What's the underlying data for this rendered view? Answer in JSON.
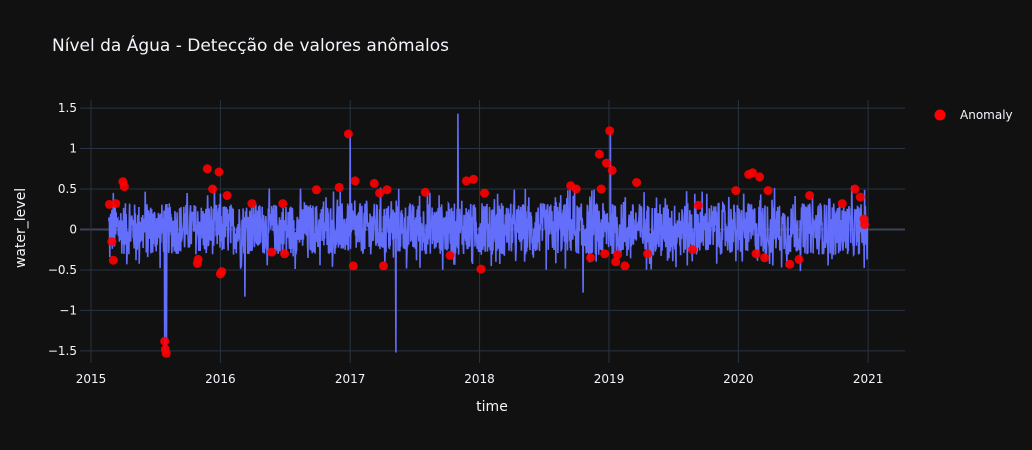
{
  "chart_data": {
    "type": "scatter",
    "title": "Nível da Água -  Detecção de valores anômalos",
    "xlabel": "time",
    "ylabel": "water_level",
    "xlim": [
      "2014-12-01",
      "2021-04-15"
    ],
    "ylim": [
      -1.65,
      1.6
    ],
    "x_ticks": [
      "2015",
      "2016",
      "2017",
      "2018",
      "2019",
      "2020",
      "2021"
    ],
    "y_ticks": [
      {
        "value": 1.5,
        "label": "1.5"
      },
      {
        "value": 1,
        "label": "1"
      },
      {
        "value": 0.5,
        "label": "0.5"
      },
      {
        "value": 0,
        "label": "0"
      },
      {
        "value": -0.5,
        "label": "−0.5"
      },
      {
        "value": -1,
        "label": "−1"
      },
      {
        "value": -1.5,
        "label": "−1.5"
      }
    ],
    "grid": true,
    "legend_position": "top-right",
    "series": [
      {
        "type": "line",
        "color": "#636efa",
        "x_start": "2015-02-20",
        "x_end": "2020-12-31",
        "typical_range": [
          -0.4,
          0.45
        ],
        "spikes": [
          {
            "x": "2015-07-28",
            "y": -1.5
          },
          {
            "x": "2015-08-02",
            "y": -1.45
          },
          {
            "x": "2017-01-01",
            "y": 1.18
          },
          {
            "x": "2017-05-10",
            "y": -1.52
          },
          {
            "x": "2017-11-01",
            "y": 1.43
          },
          {
            "x": "2019-01-05",
            "y": 1.22
          },
          {
            "x": "2016-03-10",
            "y": -0.83
          },
          {
            "x": "2018-10-20",
            "y": -0.78
          }
        ]
      },
      {
        "type": "scatter",
        "name": "Anomaly",
        "color": "#ff0000",
        "points": [
          {
            "x": "2015-02-22",
            "y": 0.31
          },
          {
            "x": "2015-03-01",
            "y": -0.15
          },
          {
            "x": "2015-03-05",
            "y": -0.38
          },
          {
            "x": "2015-03-12",
            "y": 0.32
          },
          {
            "x": "2015-04-01",
            "y": 0.59
          },
          {
            "x": "2015-04-05",
            "y": 0.53
          },
          {
            "x": "2015-07-28",
            "y": -1.38
          },
          {
            "x": "2015-07-30",
            "y": -1.48
          },
          {
            "x": "2015-08-01",
            "y": -1.53
          },
          {
            "x": "2015-10-28",
            "y": -0.42
          },
          {
            "x": "2015-10-30",
            "y": -0.37
          },
          {
            "x": "2015-11-25",
            "y": 0.75
          },
          {
            "x": "2015-12-10",
            "y": 0.5
          },
          {
            "x": "2015-12-28",
            "y": 0.71
          },
          {
            "x": "2016-01-01",
            "y": -0.55
          },
          {
            "x": "2016-01-05",
            "y": -0.52
          },
          {
            "x": "2016-01-20",
            "y": 0.42
          },
          {
            "x": "2016-03-30",
            "y": 0.32
          },
          {
            "x": "2016-05-25",
            "y": -0.28
          },
          {
            "x": "2016-06-25",
            "y": 0.32
          },
          {
            "x": "2016-06-30",
            "y": -0.3
          },
          {
            "x": "2016-09-28",
            "y": 0.49
          },
          {
            "x": "2016-12-01",
            "y": 0.52
          },
          {
            "x": "2016-12-27",
            "y": 1.18
          },
          {
            "x": "2017-01-10",
            "y": -0.45
          },
          {
            "x": "2017-01-15",
            "y": 0.6
          },
          {
            "x": "2017-03-10",
            "y": 0.57
          },
          {
            "x": "2017-03-25",
            "y": 0.45
          },
          {
            "x": "2017-04-05",
            "y": -0.45
          },
          {
            "x": "2017-04-15",
            "y": 0.49
          },
          {
            "x": "2017-08-01",
            "y": 0.46
          },
          {
            "x": "2017-10-10",
            "y": -0.32
          },
          {
            "x": "2017-11-25",
            "y": 0.6
          },
          {
            "x": "2017-12-15",
            "y": 0.62
          },
          {
            "x": "2018-01-05",
            "y": -0.49
          },
          {
            "x": "2018-01-15",
            "y": 0.45
          },
          {
            "x": "2018-09-15",
            "y": 0.54
          },
          {
            "x": "2018-10-01",
            "y": 0.5
          },
          {
            "x": "2018-11-10",
            "y": -0.35
          },
          {
            "x": "2018-12-05",
            "y": 0.93
          },
          {
            "x": "2018-12-10",
            "y": 0.5
          },
          {
            "x": "2018-12-20",
            "y": -0.3
          },
          {
            "x": "2018-12-25",
            "y": 0.82
          },
          {
            "x": "2019-01-03",
            "y": 1.22
          },
          {
            "x": "2019-01-10",
            "y": 0.73
          },
          {
            "x": "2019-01-20",
            "y": -0.4
          },
          {
            "x": "2019-01-25",
            "y": -0.31
          },
          {
            "x": "2019-02-15",
            "y": -0.45
          },
          {
            "x": "2019-03-20",
            "y": 0.58
          },
          {
            "x": "2019-04-20",
            "y": -0.3
          },
          {
            "x": "2019-08-25",
            "y": -0.25
          },
          {
            "x": "2019-09-10",
            "y": 0.3
          },
          {
            "x": "2019-12-25",
            "y": 0.48
          },
          {
            "x": "2020-01-30",
            "y": 0.68
          },
          {
            "x": "2020-02-10",
            "y": 0.7
          },
          {
            "x": "2020-02-20",
            "y": -0.3
          },
          {
            "x": "2020-03-01",
            "y": 0.65
          },
          {
            "x": "2020-03-15",
            "y": -0.35
          },
          {
            "x": "2020-03-25",
            "y": 0.48
          },
          {
            "x": "2020-05-25",
            "y": -0.43
          },
          {
            "x": "2020-06-20",
            "y": -0.37
          },
          {
            "x": "2020-07-20",
            "y": 0.42
          },
          {
            "x": "2020-10-20",
            "y": 0.32
          },
          {
            "x": "2020-11-25",
            "y": 0.5
          },
          {
            "x": "2020-12-10",
            "y": 0.4
          },
          {
            "x": "2020-12-20",
            "y": 0.13
          },
          {
            "x": "2020-12-22",
            "y": 0.06
          }
        ]
      }
    ]
  },
  "colors": {
    "background": "#111111",
    "grid": "#283442",
    "zeroline": "#3a4452",
    "text": "#f2f5fa"
  }
}
